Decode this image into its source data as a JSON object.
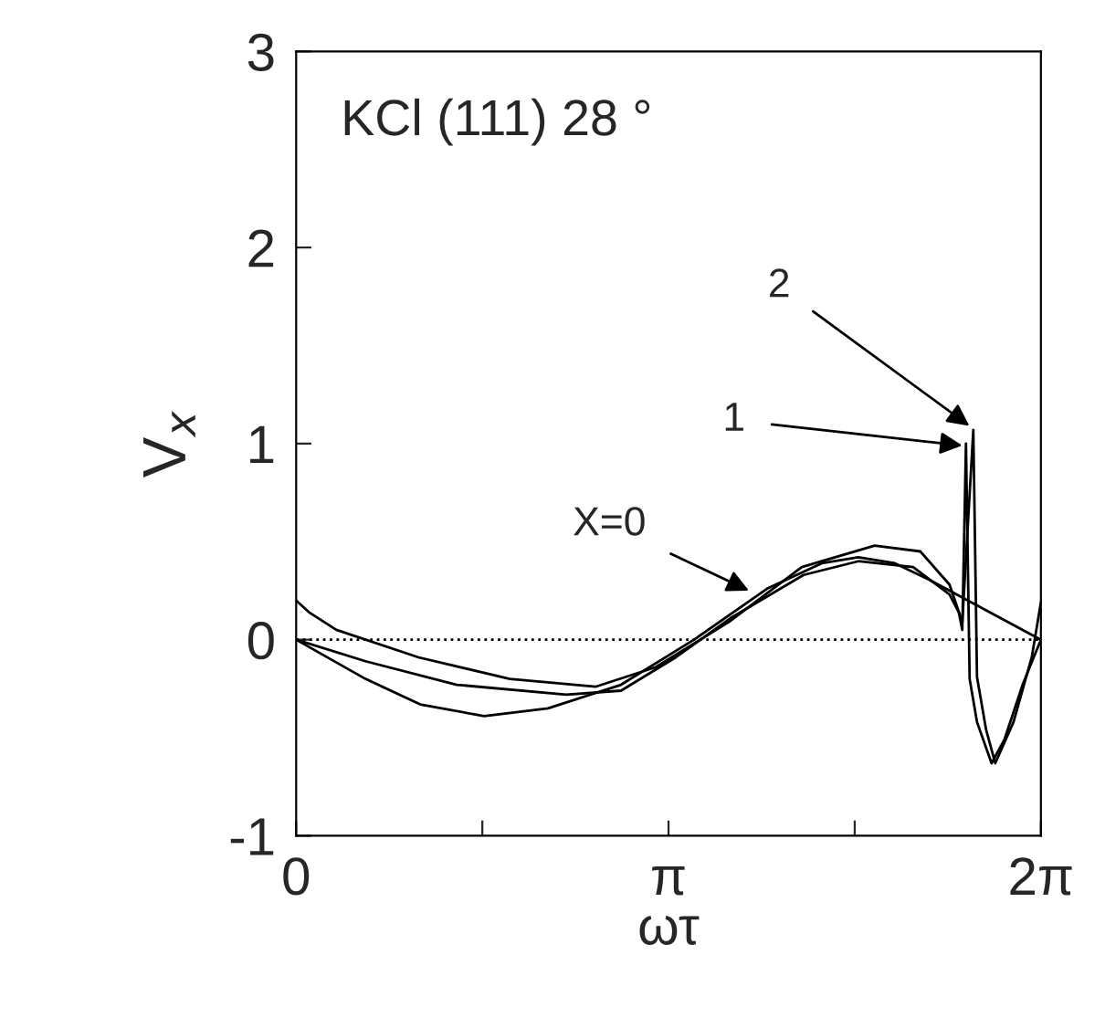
{
  "chart_data": {
    "type": "line",
    "xlabel": "ωτ",
    "ylabel": "V$_{x}$",
    "xlim": [
      0,
      6.2832
    ],
    "ylim": [
      -1,
      3
    ],
    "xticks": [
      {
        "value": 0,
        "label": "0"
      },
      {
        "value": 1.5708,
        "label": null
      },
      {
        "value": 3.1416,
        "label": "π"
      },
      {
        "value": 4.7124,
        "label": null
      },
      {
        "value": 6.2832,
        "label": "2π"
      }
    ],
    "yticks": [
      -1,
      0,
      1,
      2,
      3
    ],
    "grid": false,
    "legend": false,
    "marker": "none",
    "line_style": "solid",
    "series": [
      {
        "color": "#000000",
        "x": [
          0,
          0.585,
          1.047,
          1.586,
          2.125,
          2.741,
          3.357,
          3.973,
          4.435,
          4.743,
          5.051,
          5.359,
          6.283
        ],
        "values": [
          0,
          -0.2,
          -0.33,
          -0.39,
          -0.35,
          -0.23,
          0,
          0.26,
          0.39,
          0.42,
          0.39,
          0.3,
          0
        ]
      },
      {
        "color": "#000000",
        "x": [
          0,
          0.585,
          1.355,
          2.279,
          2.741,
          3.203,
          3.665,
          4.281,
          4.743,
          5.205,
          5.513,
          5.59,
          5.62,
          5.651,
          5.682,
          5.744,
          5.867,
          5.975,
          6.129,
          6.283
        ],
        "values": [
          0,
          -0.11,
          -0.23,
          -0.28,
          -0.26,
          -0.09,
          0.11,
          0.33,
          0.4,
          0.37,
          0.23,
          0.14,
          0.05,
          1.0,
          -0.2,
          -0.42,
          -0.63,
          -0.51,
          -0.23,
          0
        ]
      },
      {
        "color": "#000000",
        "x": [
          0,
          0.108,
          0.339,
          1.032,
          1.802,
          2.525,
          3.034,
          3.65,
          4.266,
          4.881,
          5.266,
          5.513,
          5.62,
          5.713,
          5.744,
          5.821,
          5.898,
          6.052,
          6.206,
          6.283
        ],
        "values": [
          0.2,
          0.14,
          0.05,
          -0.09,
          -0.2,
          -0.24,
          -0.14,
          0.09,
          0.37,
          0.48,
          0.45,
          0.28,
          0.09,
          1.07,
          -0.19,
          -0.46,
          -0.63,
          -0.42,
          -0.09,
          0.19
        ]
      }
    ],
    "ref_lines": [
      {
        "axis": "y",
        "value": 0,
        "line_style": "dotted",
        "color": "#000000"
      }
    ],
    "annotations": [
      "KCl (111) 28 °",
      {
        "text": "X=0",
        "x": 3.82,
        "y": 0.25
      },
      {
        "text": "1",
        "x": 5.62,
        "y": 0.99
      },
      {
        "text": "2",
        "x": 5.68,
        "y": 1.09
      }
    ]
  }
}
